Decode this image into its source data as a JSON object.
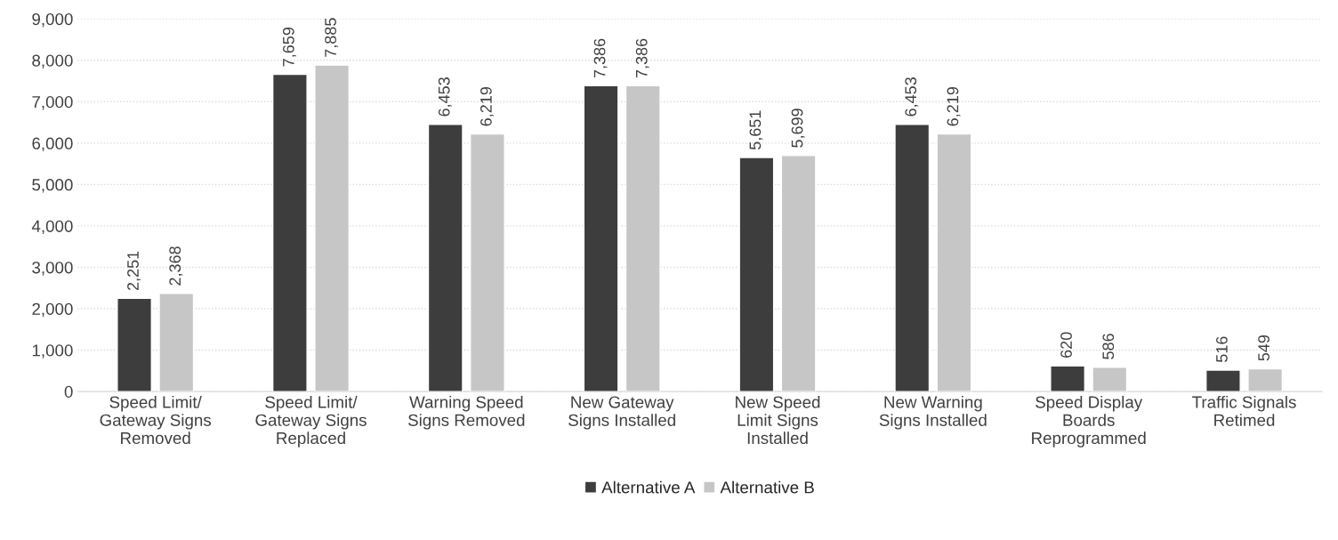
{
  "chart_data": {
    "type": "bar",
    "categories": [
      "Speed Limit/\nGateway Signs\nRemoved",
      "Speed Limit/\nGateway Signs\nReplaced",
      "Warning Speed\nSigns Removed",
      "New Gateway\nSigns Installed",
      "New Speed\nLimit Signs\nInstalled",
      "New Warning\nSigns Installed",
      "Speed Display\nBoards\nReprogrammed",
      "Traffic Signals\nRetimed"
    ],
    "series": [
      {
        "name": "Alternative A",
        "color": "#3d3d3d",
        "values": [
          2251,
          7659,
          6453,
          7386,
          5651,
          6453,
          620,
          516
        ],
        "value_labels": [
          "2,251",
          "7,659",
          "6,453",
          "7,386",
          "5,651",
          "6,453",
          "620",
          "516"
        ]
      },
      {
        "name": "Alternative B",
        "color": "#c6c6c6",
        "values": [
          2368,
          7885,
          6219,
          7386,
          5699,
          6219,
          586,
          549
        ],
        "value_labels": [
          "2,368",
          "7,885",
          "6,219",
          "7,386",
          "5,699",
          "6,219",
          "586",
          "549"
        ]
      }
    ],
    "ylim": [
      0,
      9000
    ],
    "yticks": [
      {
        "value": 0,
        "label": "0"
      },
      {
        "value": 1000,
        "label": "1,000"
      },
      {
        "value": 2000,
        "label": "2,000"
      },
      {
        "value": 3000,
        "label": "3,000"
      },
      {
        "value": 4000,
        "label": "4,000"
      },
      {
        "value": 5000,
        "label": "5,000"
      },
      {
        "value": 6000,
        "label": "6,000"
      },
      {
        "value": 7000,
        "label": "7,000"
      },
      {
        "value": 8000,
        "label": "8,000"
      },
      {
        "value": 9000,
        "label": "9,000"
      }
    ],
    "grid": "y",
    "legend": "bottom"
  }
}
